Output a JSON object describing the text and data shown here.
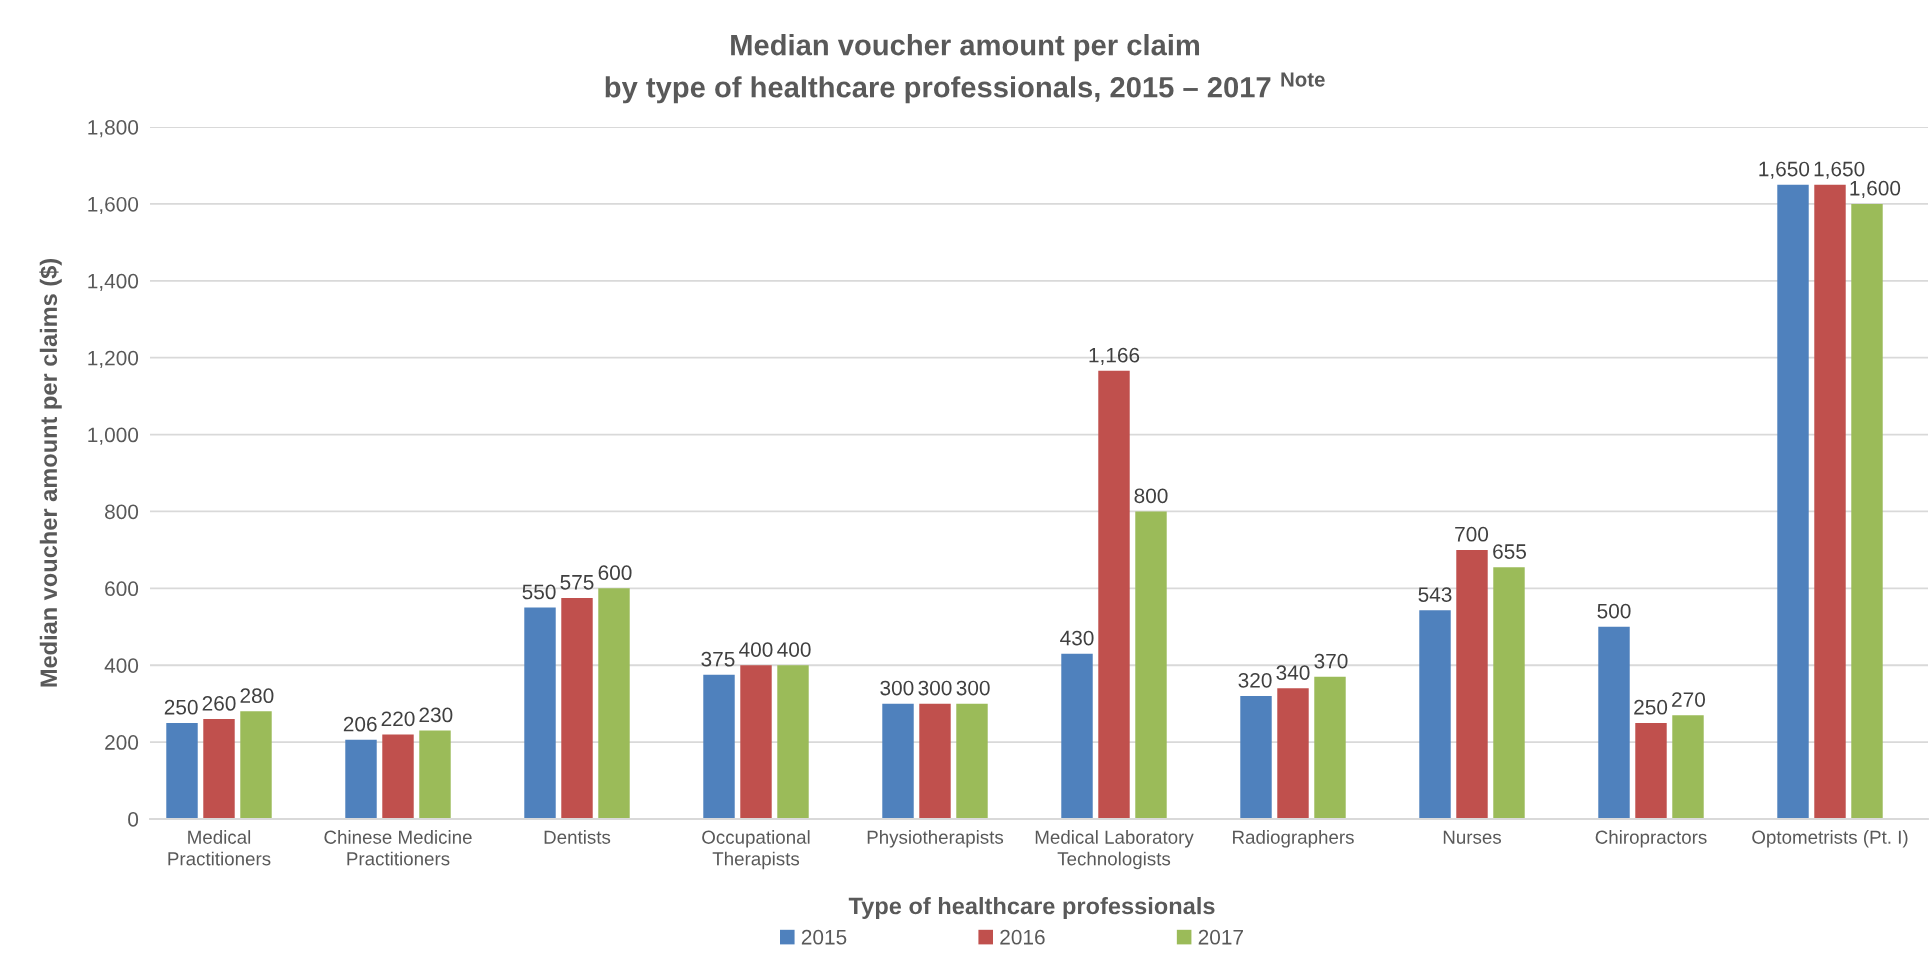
{
  "chart_data": {
    "type": "bar",
    "title": "Median voucher amount per claim\nby type of healthcare professionals, 2015 – 2017 $^{Note}$",
    "xlabel": "Type of healthcare professionals",
    "ylabel": "Median voucher amount per claims ($)",
    "categories": [
      "Medical\nPractitioners",
      "Chinese Medicine\nPractitioners",
      "Dentists",
      "Occupational\nTherapists",
      "Physiotherapists",
      "Medical Laboratory\nTechnologists",
      "Radiographers",
      "Nurses",
      "Chiropractors",
      "Optometrists (Pt. I)"
    ],
    "series": [
      {
        "name": "2015",
        "color": "#4f81bd",
        "values": [
          250,
          206,
          550,
          375,
          300,
          430,
          320,
          543,
          500,
          1650
        ],
        "value_labels": [
          "250",
          "206",
          "550",
          "375",
          "300",
          "430",
          "320",
          "543",
          "500",
          "1,650"
        ]
      },
      {
        "name": "2016",
        "color": "#c0504d",
        "values": [
          260,
          220,
          575,
          400,
          300,
          1166,
          340,
          700,
          250,
          1650
        ],
        "value_labels": [
          "260",
          "220",
          "575",
          "400",
          "300",
          "1,166",
          "340",
          "700",
          "250",
          "1,650"
        ]
      },
      {
        "name": "2017",
        "color": "#9bbb59",
        "values": [
          280,
          230,
          600,
          400,
          300,
          800,
          370,
          655,
          270,
          1600
        ],
        "value_labels": [
          "280",
          "230",
          "600",
          "400",
          "300",
          "800",
          "370",
          "655",
          "270",
          "1,600"
        ]
      }
    ],
    "ylim": [
      0,
      1800
    ],
    "yticks": [
      0,
      200,
      400,
      600,
      800,
      {
        "value": 1000,
        "label": "1,000"
      },
      {
        "value": 1200,
        "label": "1,200"
      },
      {
        "value": 1400,
        "label": "1,400"
      },
      {
        "value": 1600,
        "label": "1,600"
      },
      {
        "value": 1800,
        "label": "1,800"
      }
    ],
    "grid": "y",
    "legend": "bottom"
  }
}
